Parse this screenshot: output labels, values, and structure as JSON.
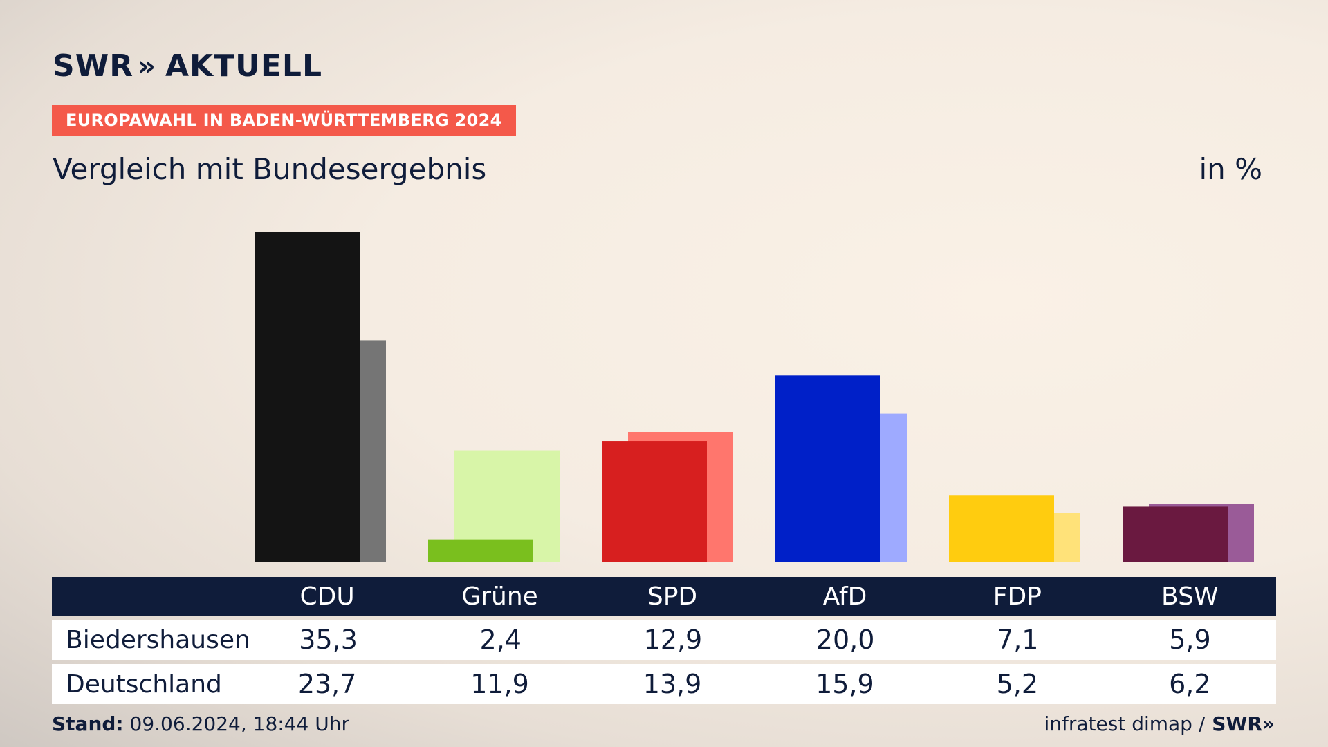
{
  "header": {
    "logo_text": "SWR",
    "logo_chevrons": "»",
    "logo_suffix": "AKTUELL",
    "tag": "EUROPAWAHL IN BADEN-WÜRTTEMBERG 2024",
    "subtitle": "Vergleich mit Bundesergebnis",
    "unit": "in %"
  },
  "chart_data": {
    "type": "bar",
    "categories": [
      "CDU",
      "Grüne",
      "SPD",
      "AfD",
      "FDP",
      "BSW"
    ],
    "series": [
      {
        "name": "Biedershausen",
        "values": [
          35.3,
          2.4,
          12.9,
          20.0,
          7.1,
          5.9
        ]
      },
      {
        "name": "Deutschland",
        "values": [
          23.7,
          11.9,
          13.9,
          15.9,
          5.2,
          6.2
        ]
      }
    ],
    "colors_primary": [
      "#141414",
      "#7abf1e",
      "#d71f1f",
      "#0020c8",
      "#ffcc0f",
      "#6a1940"
    ],
    "colors_secondary": [
      "#757575",
      "#d8f5a8",
      "#ff766d",
      "#9eaaff",
      "#ffe279",
      "#9a5b98"
    ],
    "ylim": [
      0,
      35.3
    ]
  },
  "table": {
    "header": [
      "CDU",
      "Grüne",
      "SPD",
      "AfD",
      "FDP",
      "BSW"
    ],
    "rows": [
      {
        "label": "Biedershausen",
        "values": [
          "35,3",
          "2,4",
          "12,9",
          "20,0",
          "7,1",
          "5,9"
        ]
      },
      {
        "label": "Deutschland",
        "values": [
          "23,7",
          "11,9",
          "13,9",
          "15,9",
          "5,2",
          "6,2"
        ]
      }
    ]
  },
  "footer": {
    "stand_label": "Stand:",
    "stand_value": "09.06.2024, 18:44 Uhr",
    "source": "infratest dimap /",
    "brand": "SWR»"
  }
}
